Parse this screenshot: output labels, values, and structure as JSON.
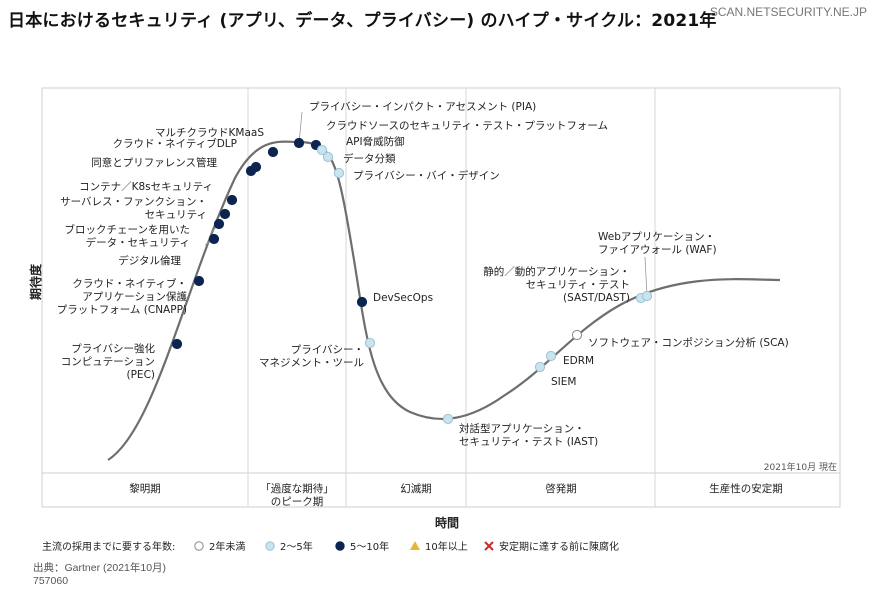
{
  "title": "日本におけるセキュリティ (アプリ、データ、プライバシー) のハイプ・サイクル：2021年",
  "watermark": "SCAN.NETSECURITY.NE.JP",
  "footer": {
    "source": "出典：Gartner (2021年10月)",
    "id": "757060"
  },
  "colors": {
    "short": "#ffffff",
    "mid": "#c9e3ef",
    "long": "#0c2550",
    "over10": "#e8b43a",
    "obsolete": "#cc2a2a",
    "curve": "#6e6e6e"
  },
  "chart_data": {
    "type": "hype-cycle",
    "ylabel": "期待度",
    "xlabel": "時間",
    "as_of": "2021年10月 現在",
    "phases": [
      "黎明期",
      "「過度な期待」|のピーク期",
      "幻滅期",
      "啓発期",
      "生産性の安定期"
    ],
    "legend": {
      "title": "主流の採用までに要する年数:",
      "items": [
        {
          "key": "short",
          "label": "2年未満"
        },
        {
          "key": "mid",
          "label": "2〜5年"
        },
        {
          "key": "long",
          "label": "5〜10年"
        },
        {
          "key": "over10",
          "label": "10年以上"
        },
        {
          "key": "obsolete",
          "label": "安定期に達する前に陳腐化"
        }
      ]
    },
    "technologies": [
      {
        "name": "プライバシー強化|コンピュテーション|(PEC)",
        "phase": "黎明期",
        "years": "5〜10年"
      },
      {
        "name": "クラウド・ネイティブ・|アプリケーション保護|プラットフォーム (CNAPP)",
        "phase": "黎明期",
        "years": "5〜10年"
      },
      {
        "name": "デジタル倫理",
        "phase": "黎明期",
        "years": "5〜10年"
      },
      {
        "name": "ブロックチェーンを用いた|データ・セキュリティ",
        "phase": "黎明期",
        "years": "5〜10年"
      },
      {
        "name": "サーバレス・ファンクション・|セキュリティ",
        "phase": "黎明期",
        "years": "5〜10年"
      },
      {
        "name": "コンテナ／K8sセキュリティ",
        "phase": "黎明期",
        "years": "5〜10年"
      },
      {
        "name": "同意とプリファレンス管理",
        "phase": "「過度な期待」のピーク期",
        "years": "5〜10年"
      },
      {
        "name": "クラウド・ネイティブDLP",
        "phase": "「過度な期待」のピーク期",
        "years": "5〜10年"
      },
      {
        "name": "マルチクラウドKMaaS",
        "phase": "「過度な期待」のピーク期",
        "years": "5〜10年"
      },
      {
        "name": "プライバシー・インパクト・アセスメント (PIA)",
        "phase": "「過度な期待」のピーク期",
        "years": "5〜10年"
      },
      {
        "name": "クラウドソースのセキュリティ・テスト・プラットフォーム",
        "phase": "「過度な期待」のピーク期",
        "years": "5〜10年"
      },
      {
        "name": "API脅威防御",
        "phase": "「過度な期待」のピーク期",
        "years": "2〜5年"
      },
      {
        "name": "データ分類",
        "phase": "「過度な期待」のピーク期",
        "years": "2〜5年"
      },
      {
        "name": "プライバシー・バイ・デザイン",
        "phase": "「過度な期待」のピーク期",
        "years": "2〜5年"
      },
      {
        "name": "DevSecOps",
        "phase": "幻滅期",
        "years": "5〜10年"
      },
      {
        "name": "プライバシー・|マネジメント・ツール",
        "phase": "幻滅期",
        "years": "2〜5年"
      },
      {
        "name": "対話型アプリケーション・|セキュリティ・テスト (IAST)",
        "phase": "幻滅期",
        "years": "2〜5年"
      },
      {
        "name": "SIEM",
        "phase": "啓発期",
        "years": "2〜5年"
      },
      {
        "name": "EDRM",
        "phase": "啓発期",
        "years": "2〜5年"
      },
      {
        "name": "ソフトウェア・コンポジション分析 (SCA)",
        "phase": "啓発期",
        "years": "2年未満"
      },
      {
        "name": "静的／動的アプリケーション・|セキュリティ・テスト|(SAST/DAST)",
        "phase": "啓発期",
        "years": "2〜5年"
      },
      {
        "name": "Webアプリケーション・|ファイアウォール (WAF)",
        "phase": "啓発期",
        "years": "2〜5年"
      }
    ]
  }
}
